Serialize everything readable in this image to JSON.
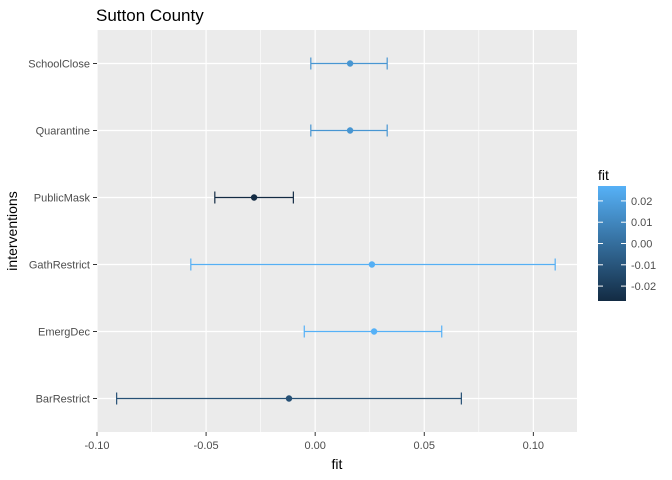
{
  "chart_data": {
    "type": "scatter",
    "title": "Sutton County",
    "xlabel": "fit",
    "ylabel": "interventions",
    "xlim": [
      -0.1,
      0.12
    ],
    "x_ticks": [
      -0.1,
      -0.05,
      0.0,
      0.05,
      0.1
    ],
    "x_tick_labels": [
      "-0.10",
      "-0.05",
      "0.00",
      "0.05",
      "0.10"
    ],
    "categories": [
      "SchoolClose",
      "Quarantine",
      "PublicMask",
      "GathRestrict",
      "EmergDec",
      "BarRestrict"
    ],
    "points": [
      {
        "category": "SchoolClose",
        "fit": 0.016,
        "lower": -0.002,
        "upper": 0.033
      },
      {
        "category": "Quarantine",
        "fit": 0.016,
        "lower": -0.002,
        "upper": 0.033
      },
      {
        "category": "PublicMask",
        "fit": -0.028,
        "lower": -0.046,
        "upper": -0.01
      },
      {
        "category": "GathRestrict",
        "fit": 0.026,
        "lower": -0.057,
        "upper": 0.11
      },
      {
        "category": "EmergDec",
        "fit": 0.027,
        "lower": -0.005,
        "upper": 0.058
      },
      {
        "category": "BarRestrict",
        "fit": -0.012,
        "lower": -0.091,
        "upper": 0.067
      }
    ],
    "grid": true,
    "legend": {
      "title": "fit",
      "position": "right",
      "range": [
        -0.027,
        0.027
      ],
      "ticks": [
        0.02,
        0.01,
        0.0,
        -0.01,
        -0.02
      ],
      "tick_labels": [
        "0.02",
        "0.01",
        "0.00",
        "-0.01",
        "-0.02"
      ],
      "color_low": "#132B43",
      "color_high": "#56B1F7"
    },
    "colors": {
      "panel_background": "#EBEBEB",
      "grid": "#FFFFFF",
      "axis_text": "#4D4D4D"
    }
  }
}
